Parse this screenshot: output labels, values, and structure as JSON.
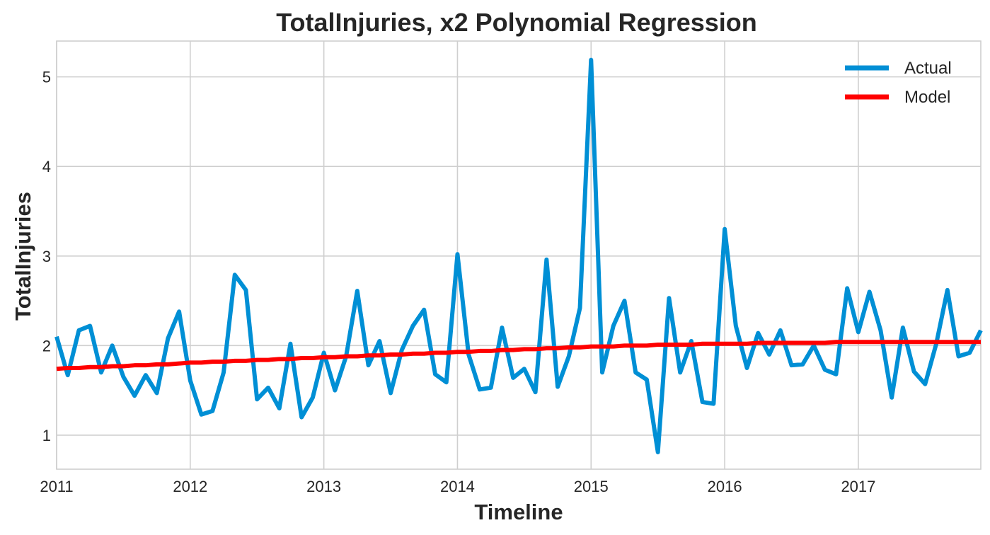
{
  "chart_data": {
    "type": "line",
    "title": "TotalInjuries, x2 Polynomial Regression",
    "xlabel": "Timeline",
    "ylabel": "TotalInjuries",
    "xlim": [
      "2011-01",
      "2017-12"
    ],
    "ylim": [
      0.62,
      5.4
    ],
    "x_ticks": [
      "2011",
      "2012",
      "2013",
      "2014",
      "2015",
      "2016",
      "2017"
    ],
    "y_ticks": [
      1,
      2,
      3,
      4,
      5
    ],
    "grid": true,
    "legend_position": "top-right",
    "x": [
      "2011-01",
      "2011-02",
      "2011-03",
      "2011-04",
      "2011-05",
      "2011-06",
      "2011-07",
      "2011-08",
      "2011-09",
      "2011-10",
      "2011-11",
      "2011-12",
      "2012-01",
      "2012-02",
      "2012-03",
      "2012-04",
      "2012-05",
      "2012-06",
      "2012-07",
      "2012-08",
      "2012-09",
      "2012-10",
      "2012-11",
      "2012-12",
      "2013-01",
      "2013-02",
      "2013-03",
      "2013-04",
      "2013-05",
      "2013-06",
      "2013-07",
      "2013-08",
      "2013-09",
      "2013-10",
      "2013-11",
      "2013-12",
      "2014-01",
      "2014-02",
      "2014-03",
      "2014-04",
      "2014-05",
      "2014-06",
      "2014-07",
      "2014-08",
      "2014-09",
      "2014-10",
      "2014-11",
      "2014-12",
      "2015-01",
      "2015-02",
      "2015-03",
      "2015-04",
      "2015-05",
      "2015-06",
      "2015-07",
      "2015-08",
      "2015-09",
      "2015-10",
      "2015-11",
      "2015-12",
      "2016-01",
      "2016-02",
      "2016-03",
      "2016-04",
      "2016-05",
      "2016-06",
      "2016-07",
      "2016-08",
      "2016-09",
      "2016-10",
      "2016-11",
      "2016-12",
      "2017-01",
      "2017-02",
      "2017-03",
      "2017-04",
      "2017-05",
      "2017-06",
      "2017-07",
      "2017-08",
      "2017-09",
      "2017-10",
      "2017-11",
      "2017-12"
    ],
    "series": [
      {
        "name": "Actual",
        "color": "#008fd5",
        "values": [
          2.1,
          1.67,
          2.17,
          2.22,
          1.7,
          2.0,
          1.65,
          1.44,
          1.67,
          1.47,
          2.08,
          2.38,
          1.61,
          1.23,
          1.27,
          1.7,
          2.79,
          2.62,
          1.4,
          1.53,
          1.3,
          2.02,
          1.2,
          1.42,
          1.92,
          1.5,
          1.88,
          2.61,
          1.78,
          2.05,
          1.47,
          1.95,
          2.22,
          2.4,
          1.68,
          1.59,
          3.02,
          1.9,
          1.51,
          1.53,
          2.2,
          1.64,
          1.74,
          1.48,
          2.96,
          1.54,
          1.88,
          2.42,
          5.19,
          1.7,
          2.22,
          2.5,
          1.7,
          1.62,
          0.81,
          2.53,
          1.7,
          2.05,
          1.37,
          1.35,
          3.3,
          2.22,
          1.75,
          2.14,
          1.9,
          2.17,
          1.78,
          1.79,
          2.0,
          1.73,
          1.68,
          2.64,
          2.15,
          2.6,
          2.17,
          1.42,
          2.2,
          1.71,
          1.57,
          2.02,
          2.62,
          1.88,
          1.92,
          2.17
        ]
      },
      {
        "name": "Model",
        "color": "#ff0000",
        "values": [
          1.74,
          1.75,
          1.75,
          1.76,
          1.76,
          1.77,
          1.77,
          1.78,
          1.78,
          1.79,
          1.79,
          1.8,
          1.81,
          1.81,
          1.82,
          1.82,
          1.83,
          1.83,
          1.84,
          1.84,
          1.85,
          1.85,
          1.86,
          1.86,
          1.87,
          1.87,
          1.88,
          1.88,
          1.89,
          1.89,
          1.9,
          1.9,
          1.91,
          1.91,
          1.92,
          1.92,
          1.93,
          1.93,
          1.94,
          1.94,
          1.95,
          1.95,
          1.96,
          1.96,
          1.97,
          1.97,
          1.98,
          1.98,
          1.99,
          1.99,
          1.99,
          2.0,
          2.0,
          2.0,
          2.01,
          2.01,
          2.01,
          2.01,
          2.02,
          2.02,
          2.02,
          2.02,
          2.02,
          2.03,
          2.03,
          2.03,
          2.03,
          2.03,
          2.03,
          2.03,
          2.04,
          2.04,
          2.04,
          2.04,
          2.04,
          2.04,
          2.04,
          2.04,
          2.04,
          2.04,
          2.04,
          2.04,
          2.04,
          2.04
        ]
      }
    ]
  }
}
